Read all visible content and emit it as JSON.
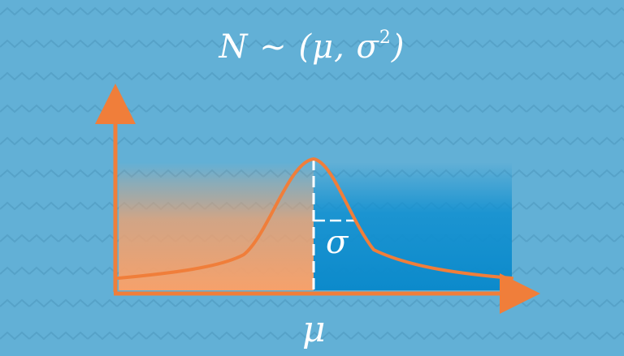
{
  "formula": {
    "main": "N ~ (μ, σ",
    "superscript": "2",
    "close": ")"
  },
  "labels": {
    "mean": "μ",
    "sigma": "σ"
  },
  "colors": {
    "background": "#62b0d6",
    "curve": "#f07e3a",
    "left_fill": "#f6a16b",
    "right_fill": "#0f8fd0",
    "mean_line": "#ffffff"
  },
  "decoration": "zigzag-wave-pattern"
}
